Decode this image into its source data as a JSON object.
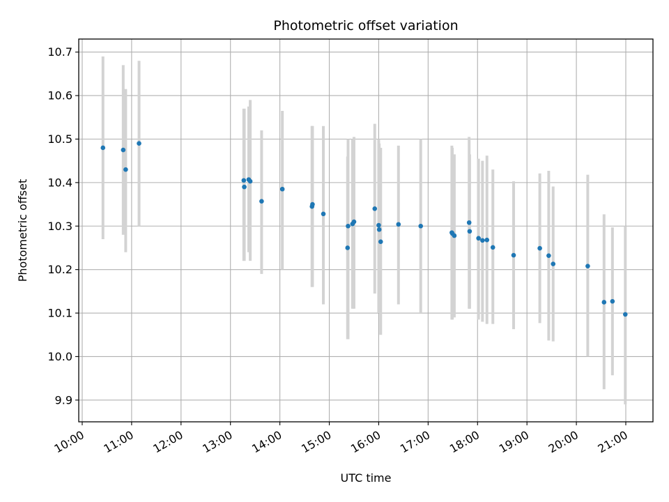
{
  "chart_data": {
    "type": "scatter",
    "title": "Photometric offset variation",
    "xlabel": "UTC time",
    "ylabel": "Photometric offset",
    "grid": true,
    "x_unit": "hours (UTC)",
    "xlim": [
      9.93,
      21.55
    ],
    "ylim": [
      9.85,
      10.73
    ],
    "x_ticks": [
      {
        "value": 10,
        "label": "10:00"
      },
      {
        "value": 11,
        "label": "11:00"
      },
      {
        "value": 12,
        "label": "12:00"
      },
      {
        "value": 13,
        "label": "13:00"
      },
      {
        "value": 14,
        "label": "14:00"
      },
      {
        "value": 15,
        "label": "15:00"
      },
      {
        "value": 16,
        "label": "16:00"
      },
      {
        "value": 17,
        "label": "17:00"
      },
      {
        "value": 18,
        "label": "18:00"
      },
      {
        "value": 19,
        "label": "19:00"
      },
      {
        "value": 20,
        "label": "20:00"
      },
      {
        "value": 21,
        "label": "21:00"
      }
    ],
    "y_ticks": [
      {
        "value": 9.9,
        "label": "9.9"
      },
      {
        "value": 10.0,
        "label": "10.0"
      },
      {
        "value": 10.1,
        "label": "10.1"
      },
      {
        "value": 10.2,
        "label": "10.2"
      },
      {
        "value": 10.3,
        "label": "10.3"
      },
      {
        "value": 10.4,
        "label": "10.4"
      },
      {
        "value": 10.5,
        "label": "10.5"
      },
      {
        "value": 10.6,
        "label": "10.6"
      },
      {
        "value": 10.7,
        "label": "10.7"
      }
    ],
    "colors": {
      "point": "#1f77b4",
      "errorbar": "#d3d3d3",
      "grid": "#b0b0b0"
    },
    "points": [
      {
        "x": 10.42,
        "y": 10.48,
        "lo": 10.27,
        "hi": 10.69
      },
      {
        "x": 10.83,
        "y": 10.475,
        "lo": 10.28,
        "hi": 10.67
      },
      {
        "x": 10.88,
        "y": 10.43,
        "lo": 10.24,
        "hi": 10.615
      },
      {
        "x": 11.15,
        "y": 10.49,
        "lo": 10.3,
        "hi": 10.68
      },
      {
        "x": 13.27,
        "y": 10.405,
        "lo": 10.22,
        "hi": 10.57
      },
      {
        "x": 13.28,
        "y": 10.39,
        "lo": 10.22,
        "hi": 10.57
      },
      {
        "x": 13.37,
        "y": 10.407,
        "lo": 10.24,
        "hi": 10.575
      },
      {
        "x": 13.4,
        "y": 10.403,
        "lo": 10.22,
        "hi": 10.59
      },
      {
        "x": 13.63,
        "y": 10.357,
        "lo": 10.19,
        "hi": 10.52
      },
      {
        "x": 14.05,
        "y": 10.385,
        "lo": 10.2,
        "hi": 10.565
      },
      {
        "x": 14.65,
        "y": 10.345,
        "lo": 10.16,
        "hi": 10.53
      },
      {
        "x": 14.66,
        "y": 10.35,
        "lo": 10.16,
        "hi": 10.53
      },
      {
        "x": 14.88,
        "y": 10.328,
        "lo": 10.12,
        "hi": 10.53
      },
      {
        "x": 15.37,
        "y": 10.25,
        "lo": 10.04,
        "hi": 10.46
      },
      {
        "x": 15.38,
        "y": 10.3,
        "lo": 10.04,
        "hi": 10.5
      },
      {
        "x": 15.47,
        "y": 10.305,
        "lo": 10.11,
        "hi": 10.5
      },
      {
        "x": 15.5,
        "y": 10.31,
        "lo": 10.11,
        "hi": 10.505
      },
      {
        "x": 15.92,
        "y": 10.34,
        "lo": 10.145,
        "hi": 10.535
      },
      {
        "x": 16.0,
        "y": 10.302,
        "lo": 10.1,
        "hi": 10.5
      },
      {
        "x": 16.01,
        "y": 10.292,
        "lo": 10.1,
        "hi": 10.49
      },
      {
        "x": 16.04,
        "y": 10.264,
        "lo": 10.05,
        "hi": 10.48
      },
      {
        "x": 16.4,
        "y": 10.304,
        "lo": 10.12,
        "hi": 10.485
      },
      {
        "x": 16.85,
        "y": 10.3,
        "lo": 10.1,
        "hi": 10.5
      },
      {
        "x": 17.48,
        "y": 10.285,
        "lo": 10.085,
        "hi": 10.485
      },
      {
        "x": 17.49,
        "y": 10.283,
        "lo": 10.085,
        "hi": 10.48
      },
      {
        "x": 17.53,
        "y": 10.278,
        "lo": 10.09,
        "hi": 10.465
      },
      {
        "x": 17.83,
        "y": 10.308,
        "lo": 10.11,
        "hi": 10.505
      },
      {
        "x": 17.84,
        "y": 10.288,
        "lo": 10.11,
        "hi": 10.465
      },
      {
        "x": 18.02,
        "y": 10.272,
        "lo": 10.085,
        "hi": 10.455
      },
      {
        "x": 18.1,
        "y": 10.267,
        "lo": 10.08,
        "hi": 10.45
      },
      {
        "x": 18.19,
        "y": 10.268,
        "lo": 10.075,
        "hi": 10.462
      },
      {
        "x": 18.31,
        "y": 10.251,
        "lo": 10.075,
        "hi": 10.43
      },
      {
        "x": 18.73,
        "y": 10.233,
        "lo": 10.063,
        "hi": 10.403
      },
      {
        "x": 19.26,
        "y": 10.249,
        "lo": 10.077,
        "hi": 10.421
      },
      {
        "x": 19.44,
        "y": 10.232,
        "lo": 10.037,
        "hi": 10.427
      },
      {
        "x": 19.53,
        "y": 10.213,
        "lo": 10.035,
        "hi": 10.391
      },
      {
        "x": 20.23,
        "y": 10.208,
        "lo": 10.0,
        "hi": 10.418
      },
      {
        "x": 20.56,
        "y": 10.125,
        "lo": 9.925,
        "hi": 10.327
      },
      {
        "x": 20.73,
        "y": 10.127,
        "lo": 9.957,
        "hi": 10.297
      },
      {
        "x": 20.99,
        "y": 10.097,
        "lo": 9.89,
        "hi": 10.3
      }
    ]
  }
}
